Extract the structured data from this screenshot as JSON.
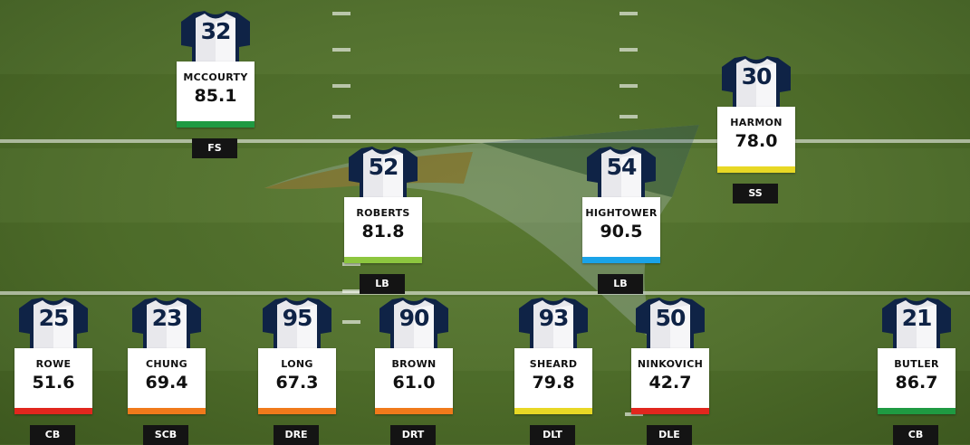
{
  "colors": {
    "red": "#e1271e",
    "orange": "#f07a1b",
    "yellow": "#e8d825",
    "lightgreen": "#8dc63f",
    "green": "#1f9a42",
    "blue": "#1aa3e8",
    "jersey_navy": "#0f2346"
  },
  "icons": {
    "jersey": "jersey-icon",
    "logo": "team-logo-watermark"
  },
  "players": [
    {
      "id": "mccourty",
      "number": "32",
      "name": "MCCOURTY",
      "grade": "85.1",
      "position": "FS",
      "grade_color": "green"
    },
    {
      "id": "harmon",
      "number": "30",
      "name": "HARMON",
      "grade": "78.0",
      "position": "SS",
      "grade_color": "yellow"
    },
    {
      "id": "roberts",
      "number": "52",
      "name": "ROBERTS",
      "grade": "81.8",
      "position": "LB",
      "grade_color": "lightgreen"
    },
    {
      "id": "hightower",
      "number": "54",
      "name": "HIGHTOWER",
      "grade": "90.5",
      "position": "LB",
      "grade_color": "blue"
    },
    {
      "id": "rowe",
      "number": "25",
      "name": "ROWE",
      "grade": "51.6",
      "position": "CB",
      "grade_color": "red"
    },
    {
      "id": "chung",
      "number": "23",
      "name": "CHUNG",
      "grade": "69.4",
      "position": "SCB",
      "grade_color": "orange"
    },
    {
      "id": "long",
      "number": "95",
      "name": "LONG",
      "grade": "67.3",
      "position": "DRE",
      "grade_color": "orange"
    },
    {
      "id": "brown",
      "number": "90",
      "name": "BROWN",
      "grade": "61.0",
      "position": "DRT",
      "grade_color": "orange"
    },
    {
      "id": "sheard",
      "number": "93",
      "name": "SHEARD",
      "grade": "79.8",
      "position": "DLT",
      "grade_color": "yellow"
    },
    {
      "id": "ninkovich",
      "number": "50",
      "name": "NINKOVICH",
      "grade": "42.7",
      "position": "DLE",
      "grade_color": "red"
    },
    {
      "id": "butler",
      "number": "21",
      "name": "BUTLER",
      "grade": "86.7",
      "position": "CB",
      "grade_color": "green"
    }
  ]
}
